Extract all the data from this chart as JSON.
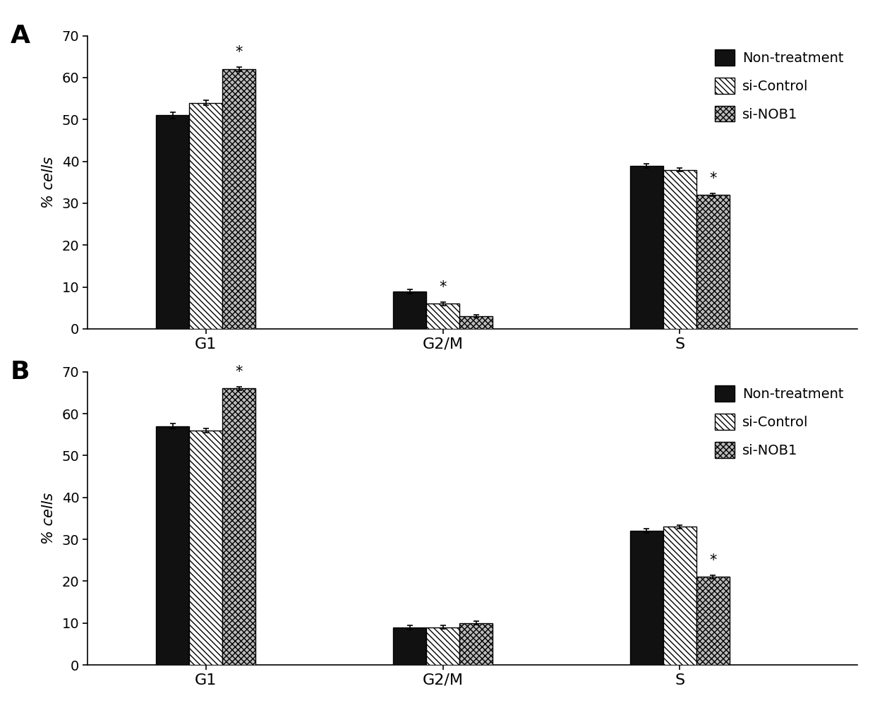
{
  "panel_A": {
    "categories": [
      "G1",
      "G2/M",
      "S"
    ],
    "non_treatment": [
      51,
      9,
      39
    ],
    "si_control": [
      54,
      6,
      38
    ],
    "si_nob1": [
      62,
      3,
      32
    ],
    "yerr_non_treatment": [
      0.7,
      0.5,
      0.5
    ],
    "yerr_si_control": [
      0.6,
      0.4,
      0.4
    ],
    "yerr_si_nob1": [
      0.5,
      0.3,
      0.4
    ],
    "sig_nob1": [
      true,
      false,
      true
    ],
    "sig_sc": [
      false,
      true,
      false
    ],
    "label": "A"
  },
  "panel_B": {
    "categories": [
      "G1",
      "G2/M",
      "S"
    ],
    "non_treatment": [
      57,
      9,
      32
    ],
    "si_control": [
      56,
      9,
      33
    ],
    "si_nob1": [
      66,
      10,
      21
    ],
    "yerr_non_treatment": [
      0.6,
      0.5,
      0.5
    ],
    "yerr_si_control": [
      0.5,
      0.4,
      0.4
    ],
    "yerr_si_nob1": [
      0.5,
      0.4,
      0.5
    ],
    "sig_nob1": [
      true,
      false,
      true
    ],
    "sig_sc": [
      false,
      false,
      false
    ],
    "label": "B"
  },
  "ylim": [
    0,
    70
  ],
  "yticks": [
    0,
    10,
    20,
    30,
    40,
    50,
    60,
    70
  ],
  "ylabel": "% cells",
  "legend_labels": [
    "Non-treatment",
    "si-Control",
    "si-NOB1"
  ],
  "bar_width": 0.28,
  "group_positions": [
    1.0,
    3.0,
    5.0
  ],
  "xlim": [
    0.0,
    6.5
  ],
  "color_non_treatment": "#111111",
  "color_si_control_face": "#ffffff",
  "color_si_nob1_face": "#bbbbbb",
  "hatch_si_control": "\\\\\\\\",
  "hatch_si_nob1": "xxxx"
}
